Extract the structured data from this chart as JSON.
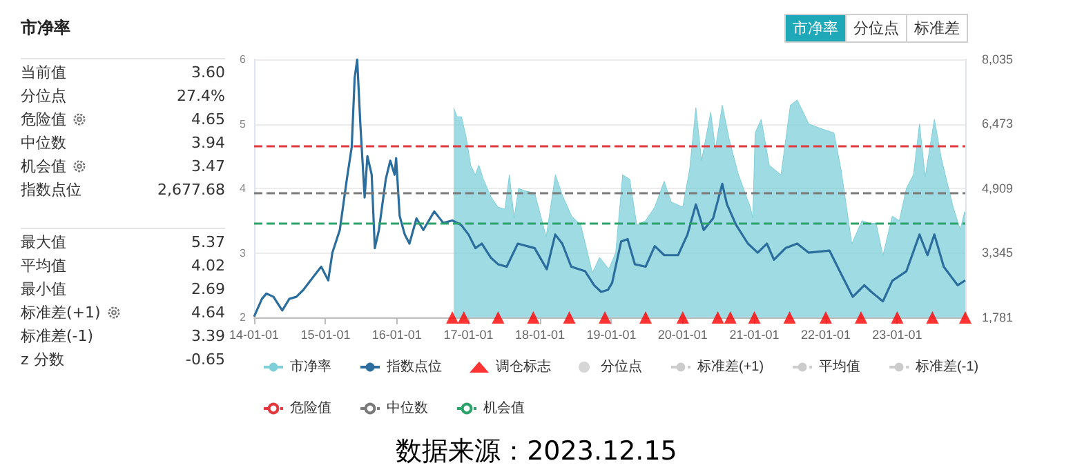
{
  "chart_data": [
    {
      "type": "other",
      "title": "市净率",
      "annotations": [
        "当前值",
        "3.60",
        "分位点",
        "27.4%",
        "危险值",
        "4.65",
        "中位数",
        "3.94",
        "机会值",
        "3.47",
        "指数点位",
        "2,677.68",
        "最大值",
        "5.37",
        "平均值",
        "4.02",
        "最小值",
        "2.69",
        "标准差(+1)",
        "4.64",
        "标准差(-1)",
        "3.39",
        "z 分数",
        "-0.65"
      ]
    },
    {
      "type": "line",
      "grid": "y",
      "legend": "bottom",
      "annotations": [
        "市净率",
        "分位点",
        "标准差",
        "数据来源：2023.12.15"
      ],
      "xlim": [
        "2014-01-01",
        "2023-12-15"
      ],
      "xticks": [
        {
          "value": "2014-01-01",
          "label": "14-01-01"
        },
        {
          "value": "2015-01-01",
          "label": "15-01-01"
        },
        {
          "value": "2016-01-01",
          "label": "16-01-01"
        },
        {
          "value": "2017-01-01",
          "label": "17-01-01"
        },
        {
          "value": "2018-01-01",
          "label": "18-01-01"
        },
        {
          "value": "2019-01-01",
          "label": "19-01-01"
        },
        {
          "value": "2020-01-01",
          "label": "20-01-01"
        },
        {
          "value": "2021-01-01",
          "label": "21-01-01"
        },
        {
          "value": "2022-01-01",
          "label": "22-01-01"
        },
        {
          "value": "2023-01-01",
          "label": "23-01-01"
        }
      ],
      "ylim": [
        2,
        6
      ],
      "yticks": [
        2,
        3,
        4,
        5,
        6
      ],
      "y2lim": [
        1781,
        8035
      ],
      "y2ticks": [
        {
          "value": 1781,
          "label": "1,781"
        },
        {
          "value": 3345,
          "label": "3,345"
        },
        {
          "value": 4909,
          "label": "4,909"
        },
        {
          "value": 6473,
          "label": "6,473"
        },
        {
          "value": 8035,
          "label": "8,035"
        }
      ],
      "series": [
        {
          "name": "市净率",
          "type": "area",
          "color": "#7fcfd9",
          "x": [
            "2016-10-17",
            "2016-11-03",
            "2016-11-26",
            "2016-12-20",
            "2017-01-12",
            "2017-02-04",
            "2017-02-23",
            "2017-03-18",
            "2017-04-27",
            "2017-06-01",
            "2017-07-06",
            "2017-07-29",
            "2017-08-22",
            "2017-09-14",
            "2017-10-19",
            "2017-12-05",
            "2018-02-02",
            "2018-03-21",
            "2018-04-26",
            "2018-06-12",
            "2018-07-29",
            "2018-09-26",
            "2018-11-02",
            "2018-12-19",
            "2019-01-23",
            "2019-02-28",
            "2019-04-05",
            "2019-05-11",
            "2019-06-25",
            "2019-08-11",
            "2019-09-28",
            "2019-11-03",
            "2020-01-01",
            "2020-02-05",
            "2020-03-08",
            "2020-04-06",
            "2020-05-23",
            "2020-06-16",
            "2020-07-21",
            "2020-08-26",
            "2020-10-12",
            "2020-12-11",
            "2020-12-24",
            "2021-01-05",
            "2021-02-05",
            "2021-03-18",
            "2021-05-17",
            "2021-07-04",
            "2021-08-08",
            "2021-10-06",
            "2021-12-04",
            "2022-02-12",
            "2022-03-20",
            "2022-05-14",
            "2022-07-05",
            "2022-08-10",
            "2022-09-15",
            "2022-10-20",
            "2022-12-07",
            "2023-01-12",
            "2023-02-17",
            "2023-03-25",
            "2023-04-25",
            "2023-05-24",
            "2023-07-10",
            "2023-08-15",
            "2023-10-14",
            "2023-11-19",
            "2023-12-12",
            "2023-12-15"
          ],
          "values": [
            5.25,
            5.11,
            5.11,
            4.79,
            4.36,
            4.21,
            4.36,
            4.14,
            3.86,
            3.71,
            3.68,
            4.21,
            3.54,
            4.0,
            3.96,
            3.93,
            3.25,
            4.21,
            3.89,
            3.57,
            3.43,
            2.69,
            2.93,
            2.75,
            3.0,
            4.21,
            4.14,
            3.43,
            3.5,
            3.71,
            4.11,
            3.79,
            3.71,
            4.29,
            5.25,
            4.43,
            5.18,
            4.61,
            5.29,
            4.75,
            4.21,
            3.71,
            3.54,
            4.86,
            5.07,
            4.36,
            4.21,
            5.29,
            5.37,
            5.0,
            4.93,
            4.86,
            4.29,
            3.14,
            3.5,
            3.46,
            3.46,
            2.96,
            3.57,
            3.5,
            4.0,
            4.21,
            5.0,
            4.18,
            5.07,
            4.46,
            3.71,
            3.36,
            3.64,
            3.6
          ]
        },
        {
          "name": "指数点位",
          "type": "line",
          "axis": "y2",
          "color": "#2b6d9c",
          "x": [
            "2014-01-01",
            "2014-02-10",
            "2014-03-05",
            "2014-04-10",
            "2014-05-25",
            "2014-06-30",
            "2014-08-05",
            "2014-09-10",
            "2014-10-25",
            "2014-12-10",
            "2015-01-15",
            "2015-02-05",
            "2015-03-15",
            "2015-04-20",
            "2015-05-15",
            "2015-05-30",
            "2015-06-12",
            "2015-06-28",
            "2015-07-20",
            "2015-08-03",
            "2015-08-25",
            "2015-09-10",
            "2015-10-01",
            "2015-11-05",
            "2015-11-28",
            "2015-12-20",
            "2015-12-28",
            "2016-01-15",
            "2016-02-10",
            "2016-03-05",
            "2016-04-10",
            "2016-05-15",
            "2016-07-10",
            "2016-08-25",
            "2016-10-10",
            "2016-11-25",
            "2017-01-01",
            "2017-02-05",
            "2017-03-10",
            "2017-04-25",
            "2017-06-01",
            "2017-07-15",
            "2017-09-10",
            "2017-12-05",
            "2018-02-05",
            "2018-03-20",
            "2018-04-25",
            "2018-06-10",
            "2018-08-20",
            "2018-10-05",
            "2018-11-10",
            "2018-12-15",
            "2019-01-05",
            "2019-02-20",
            "2019-03-25",
            "2019-05-01",
            "2019-06-25",
            "2019-08-11",
            "2019-09-28",
            "2019-12-08",
            "2020-01-25",
            "2020-03-08",
            "2020-04-17",
            "2020-06-04",
            "2020-07-21",
            "2020-08-14",
            "2020-09-30",
            "2020-11-29",
            "2021-01-18",
            "2021-03-06",
            "2021-04-11",
            "2021-06-09",
            "2021-08-08",
            "2021-10-06",
            "2022-01-20",
            "2022-03-20",
            "2022-05-19",
            "2022-07-17",
            "2022-08-22",
            "2022-10-20",
            "2022-12-07",
            "2023-02-17",
            "2023-04-25",
            "2023-06-05",
            "2023-07-10",
            "2023-08-27",
            "2023-11-06",
            "2023-12-15"
          ],
          "values": [
            1800,
            2230,
            2360,
            2280,
            1950,
            2230,
            2280,
            2450,
            2730,
            3010,
            2680,
            3350,
            3900,
            5130,
            5910,
            7590,
            8030,
            6470,
            4690,
            5690,
            5240,
            3460,
            3900,
            5130,
            5580,
            5240,
            5640,
            4240,
            3790,
            3570,
            4180,
            3900,
            4350,
            4070,
            4130,
            4020,
            3790,
            3460,
            3570,
            3230,
            3070,
            3010,
            3570,
            3460,
            2950,
            3790,
            3570,
            3010,
            2900,
            2560,
            2400,
            2450,
            2620,
            3620,
            3680,
            3070,
            3010,
            3510,
            3290,
            3290,
            3790,
            4520,
            3900,
            4180,
            5020,
            4520,
            4020,
            3570,
            3350,
            3570,
            3180,
            3460,
            3570,
            3350,
            3400,
            2840,
            2280,
            2560,
            2400,
            2170,
            2670,
            2900,
            3790,
            3290,
            3790,
            3010,
            2560,
            2680
          ]
        },
        {
          "name": "调仓标志",
          "type": "scatter",
          "marker": "triangle",
          "color": "#ff0000",
          "x": [
            "2016-10-10",
            "2016-12-08",
            "2017-06-01",
            "2017-11-28",
            "2018-05-31",
            "2018-11-29",
            "2019-06-25",
            "2020-01-01",
            "2020-06-28",
            "2020-08-31",
            "2021-01-01",
            "2021-06-30",
            "2022-01-01",
            "2022-06-30",
            "2023-01-01",
            "2023-06-30",
            "2023-12-15"
          ],
          "values": [
            2,
            2,
            2,
            2,
            2,
            2,
            2,
            2,
            2,
            2,
            2,
            2,
            2,
            2,
            2,
            2,
            2
          ]
        },
        {
          "name": "分位点",
          "type": "scatter",
          "marker": "circle",
          "color": "#cccccc"
        },
        {
          "name": "标准差(+1)",
          "type": "line",
          "line_style": "dashed",
          "color": "#cccccc"
        },
        {
          "name": "平均值",
          "type": "line",
          "line_style": "dashed",
          "color": "#cccccc"
        },
        {
          "name": "标准差(-1)",
          "type": "line",
          "line_style": "dashed",
          "color": "#cccccc"
        }
      ],
      "ref_lines": [
        {
          "axis": "y",
          "value": 4.65,
          "label": "危险值",
          "color": "#e0393e",
          "line_style": "dashed"
        },
        {
          "axis": "y",
          "value": 3.94,
          "label": "中位数",
          "color": "#7a7a7a",
          "line_style": "dashed"
        },
        {
          "axis": "y",
          "value": 3.47,
          "label": "机会值",
          "color": "#2ca36b",
          "line_style": "dashed"
        }
      ]
    }
  ]
}
